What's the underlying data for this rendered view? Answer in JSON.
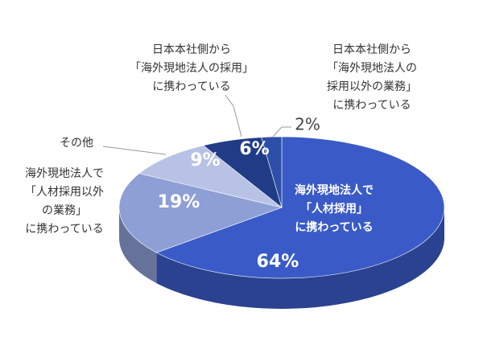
{
  "chart_data": {
    "type": "pie",
    "categories": [
      [
        "海外現地法人で",
        "「人材採用」",
        "に携わっている"
      ],
      [
        "海外現地法人で",
        "「人材採用以外",
        "の業務」",
        "に携わっている"
      ],
      [
        "その他"
      ],
      [
        "日本本社側から",
        "「海外現地法人の採用」",
        "に携わっている"
      ],
      [
        "日本本社側から",
        "「海外現地法人の",
        "採用以外の業務」",
        "に携わっている"
      ]
    ],
    "values": [
      64,
      19,
      9,
      6,
      2
    ],
    "value_labels": [
      "64%",
      "19%",
      "9%",
      "6%",
      "2%"
    ],
    "colors": [
      "#3a5bc7",
      "#8e9fd6",
      "#b8c2e4",
      "#203c86",
      "#2e4fa9"
    ]
  }
}
